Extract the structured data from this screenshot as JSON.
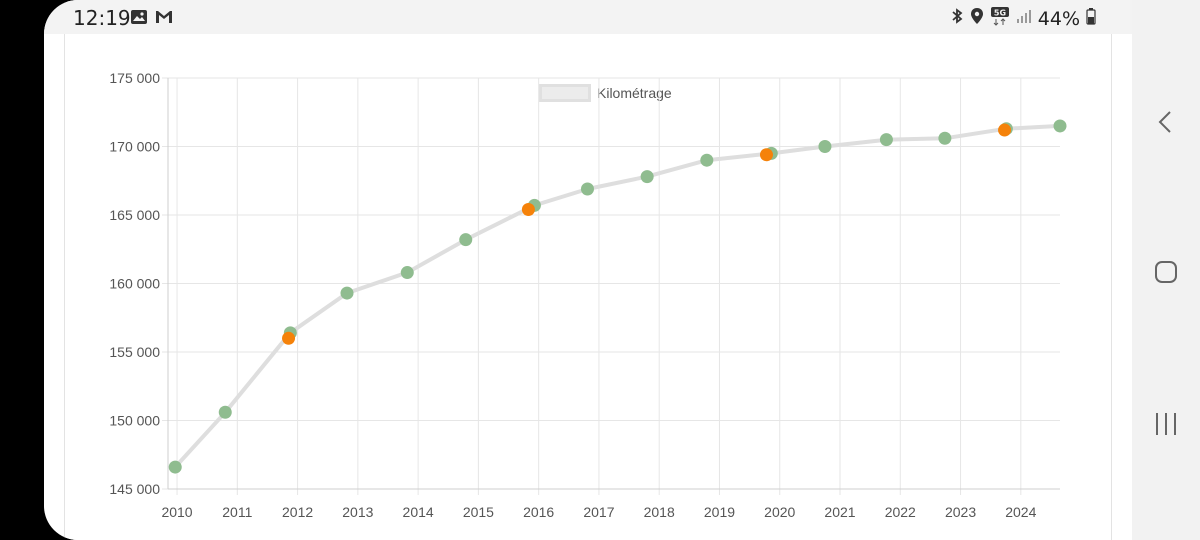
{
  "status_bar": {
    "time": "12:19",
    "left_icons": [
      "image-icon",
      "gmail-icon"
    ],
    "right_icons": [
      "bluetooth-icon",
      "location-icon",
      "5g-icon",
      "signal-icon",
      "battery-icon"
    ],
    "network": "5G",
    "battery": "44%"
  },
  "nav_bar": {
    "buttons": [
      "back-button",
      "home-button",
      "recents-button"
    ]
  },
  "colors": {
    "line": "#dedede",
    "point_green": "#8fbc8f",
    "point_orange": "#f5820a",
    "grid": "#e6e6e6"
  },
  "chart_data": {
    "type": "line",
    "legend": [
      "Kilométrage"
    ],
    "legend_position": "top-center",
    "grid": true,
    "x_ticks": [
      "2010",
      "2011",
      "2012",
      "2013",
      "2014",
      "2015",
      "2016",
      "2017",
      "2018",
      "2019",
      "2020",
      "2021",
      "2022",
      "2023",
      "2024"
    ],
    "y_ticks": [
      "145 000",
      "150 000",
      "155 000",
      "160 000",
      "165 000",
      "170 000",
      "175 000"
    ],
    "xlim": [
      2009.85,
      2024.65
    ],
    "ylim": [
      145000,
      175000
    ],
    "series": [
      {
        "name": "Kilométrage",
        "points": [
          {
            "x": 2009.97,
            "y": 146600
          },
          {
            "x": 2010.8,
            "y": 150600
          },
          {
            "x": 2011.88,
            "y": 156400
          },
          {
            "x": 2012.82,
            "y": 159300
          },
          {
            "x": 2013.82,
            "y": 160800
          },
          {
            "x": 2014.79,
            "y": 163200
          },
          {
            "x": 2015.93,
            "y": 165700
          },
          {
            "x": 2016.81,
            "y": 166900
          },
          {
            "x": 2017.8,
            "y": 167800
          },
          {
            "x": 2018.79,
            "y": 169000
          },
          {
            "x": 2019.86,
            "y": 169500
          },
          {
            "x": 2020.75,
            "y": 170000
          },
          {
            "x": 2021.77,
            "y": 170500
          },
          {
            "x": 2022.74,
            "y": 170600
          },
          {
            "x": 2023.76,
            "y": 171300
          },
          {
            "x": 2024.65,
            "y": 171500
          }
        ]
      }
    ],
    "highlight_points": [
      {
        "x": 2011.85,
        "y": 156000
      },
      {
        "x": 2015.83,
        "y": 165400
      },
      {
        "x": 2019.78,
        "y": 169400
      },
      {
        "x": 2023.73,
        "y": 171200
      }
    ]
  }
}
